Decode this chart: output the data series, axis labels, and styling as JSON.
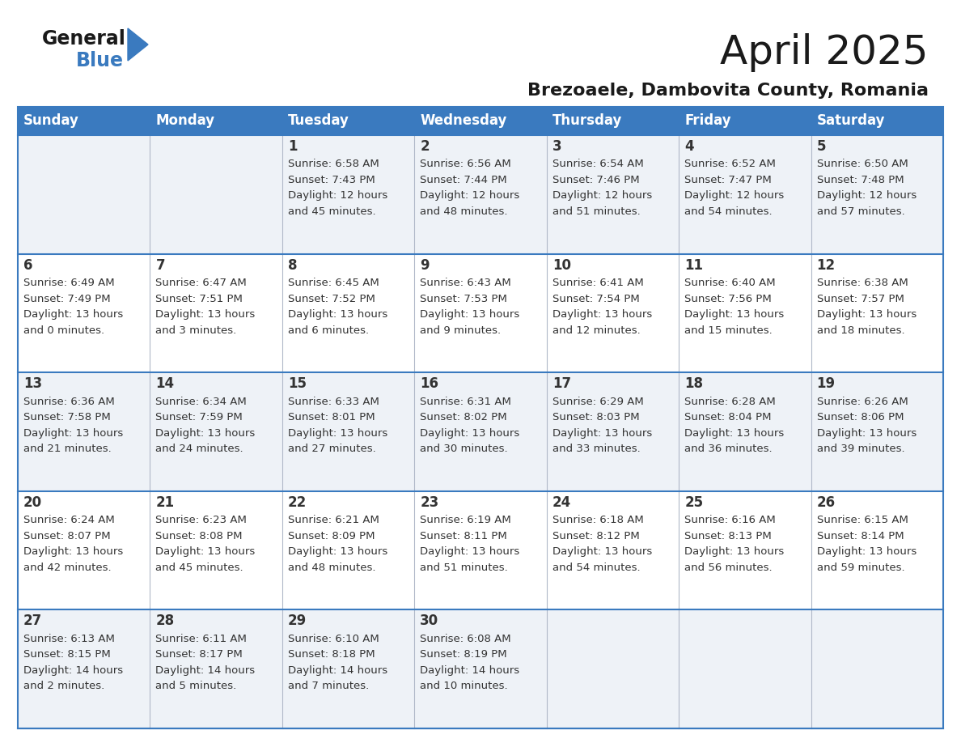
{
  "title": "April 2025",
  "subtitle": "Brezoaele, Dambovita County, Romania",
  "days_of_week": [
    "Sunday",
    "Monday",
    "Tuesday",
    "Wednesday",
    "Thursday",
    "Friday",
    "Saturday"
  ],
  "header_bg": "#3a7abf",
  "header_text": "#ffffff",
  "row_bg_odd": "#eef2f7",
  "row_bg_even": "#ffffff",
  "border_color": "#3a7abf",
  "cell_border_color": "#3a7abf",
  "text_color": "#333333",
  "title_fontsize": 36,
  "subtitle_fontsize": 16,
  "header_fontsize": 12,
  "day_num_fontsize": 12,
  "info_fontsize": 9.5,
  "calendar": [
    [
      {
        "day": "",
        "info": ""
      },
      {
        "day": "",
        "info": ""
      },
      {
        "day": "1",
        "info": "Sunrise: 6:58 AM\nSunset: 7:43 PM\nDaylight: 12 hours\nand 45 minutes."
      },
      {
        "day": "2",
        "info": "Sunrise: 6:56 AM\nSunset: 7:44 PM\nDaylight: 12 hours\nand 48 minutes."
      },
      {
        "day": "3",
        "info": "Sunrise: 6:54 AM\nSunset: 7:46 PM\nDaylight: 12 hours\nand 51 minutes."
      },
      {
        "day": "4",
        "info": "Sunrise: 6:52 AM\nSunset: 7:47 PM\nDaylight: 12 hours\nand 54 minutes."
      },
      {
        "day": "5",
        "info": "Sunrise: 6:50 AM\nSunset: 7:48 PM\nDaylight: 12 hours\nand 57 minutes."
      }
    ],
    [
      {
        "day": "6",
        "info": "Sunrise: 6:49 AM\nSunset: 7:49 PM\nDaylight: 13 hours\nand 0 minutes."
      },
      {
        "day": "7",
        "info": "Sunrise: 6:47 AM\nSunset: 7:51 PM\nDaylight: 13 hours\nand 3 minutes."
      },
      {
        "day": "8",
        "info": "Sunrise: 6:45 AM\nSunset: 7:52 PM\nDaylight: 13 hours\nand 6 minutes."
      },
      {
        "day": "9",
        "info": "Sunrise: 6:43 AM\nSunset: 7:53 PM\nDaylight: 13 hours\nand 9 minutes."
      },
      {
        "day": "10",
        "info": "Sunrise: 6:41 AM\nSunset: 7:54 PM\nDaylight: 13 hours\nand 12 minutes."
      },
      {
        "day": "11",
        "info": "Sunrise: 6:40 AM\nSunset: 7:56 PM\nDaylight: 13 hours\nand 15 minutes."
      },
      {
        "day": "12",
        "info": "Sunrise: 6:38 AM\nSunset: 7:57 PM\nDaylight: 13 hours\nand 18 minutes."
      }
    ],
    [
      {
        "day": "13",
        "info": "Sunrise: 6:36 AM\nSunset: 7:58 PM\nDaylight: 13 hours\nand 21 minutes."
      },
      {
        "day": "14",
        "info": "Sunrise: 6:34 AM\nSunset: 7:59 PM\nDaylight: 13 hours\nand 24 minutes."
      },
      {
        "day": "15",
        "info": "Sunrise: 6:33 AM\nSunset: 8:01 PM\nDaylight: 13 hours\nand 27 minutes."
      },
      {
        "day": "16",
        "info": "Sunrise: 6:31 AM\nSunset: 8:02 PM\nDaylight: 13 hours\nand 30 minutes."
      },
      {
        "day": "17",
        "info": "Sunrise: 6:29 AM\nSunset: 8:03 PM\nDaylight: 13 hours\nand 33 minutes."
      },
      {
        "day": "18",
        "info": "Sunrise: 6:28 AM\nSunset: 8:04 PM\nDaylight: 13 hours\nand 36 minutes."
      },
      {
        "day": "19",
        "info": "Sunrise: 6:26 AM\nSunset: 8:06 PM\nDaylight: 13 hours\nand 39 minutes."
      }
    ],
    [
      {
        "day": "20",
        "info": "Sunrise: 6:24 AM\nSunset: 8:07 PM\nDaylight: 13 hours\nand 42 minutes."
      },
      {
        "day": "21",
        "info": "Sunrise: 6:23 AM\nSunset: 8:08 PM\nDaylight: 13 hours\nand 45 minutes."
      },
      {
        "day": "22",
        "info": "Sunrise: 6:21 AM\nSunset: 8:09 PM\nDaylight: 13 hours\nand 48 minutes."
      },
      {
        "day": "23",
        "info": "Sunrise: 6:19 AM\nSunset: 8:11 PM\nDaylight: 13 hours\nand 51 minutes."
      },
      {
        "day": "24",
        "info": "Sunrise: 6:18 AM\nSunset: 8:12 PM\nDaylight: 13 hours\nand 54 minutes."
      },
      {
        "day": "25",
        "info": "Sunrise: 6:16 AM\nSunset: 8:13 PM\nDaylight: 13 hours\nand 56 minutes."
      },
      {
        "day": "26",
        "info": "Sunrise: 6:15 AM\nSunset: 8:14 PM\nDaylight: 13 hours\nand 59 minutes."
      }
    ],
    [
      {
        "day": "27",
        "info": "Sunrise: 6:13 AM\nSunset: 8:15 PM\nDaylight: 14 hours\nand 2 minutes."
      },
      {
        "day": "28",
        "info": "Sunrise: 6:11 AM\nSunset: 8:17 PM\nDaylight: 14 hours\nand 5 minutes."
      },
      {
        "day": "29",
        "info": "Sunrise: 6:10 AM\nSunset: 8:18 PM\nDaylight: 14 hours\nand 7 minutes."
      },
      {
        "day": "30",
        "info": "Sunrise: 6:08 AM\nSunset: 8:19 PM\nDaylight: 14 hours\nand 10 minutes."
      },
      {
        "day": "",
        "info": ""
      },
      {
        "day": "",
        "info": ""
      },
      {
        "day": "",
        "info": ""
      }
    ]
  ]
}
